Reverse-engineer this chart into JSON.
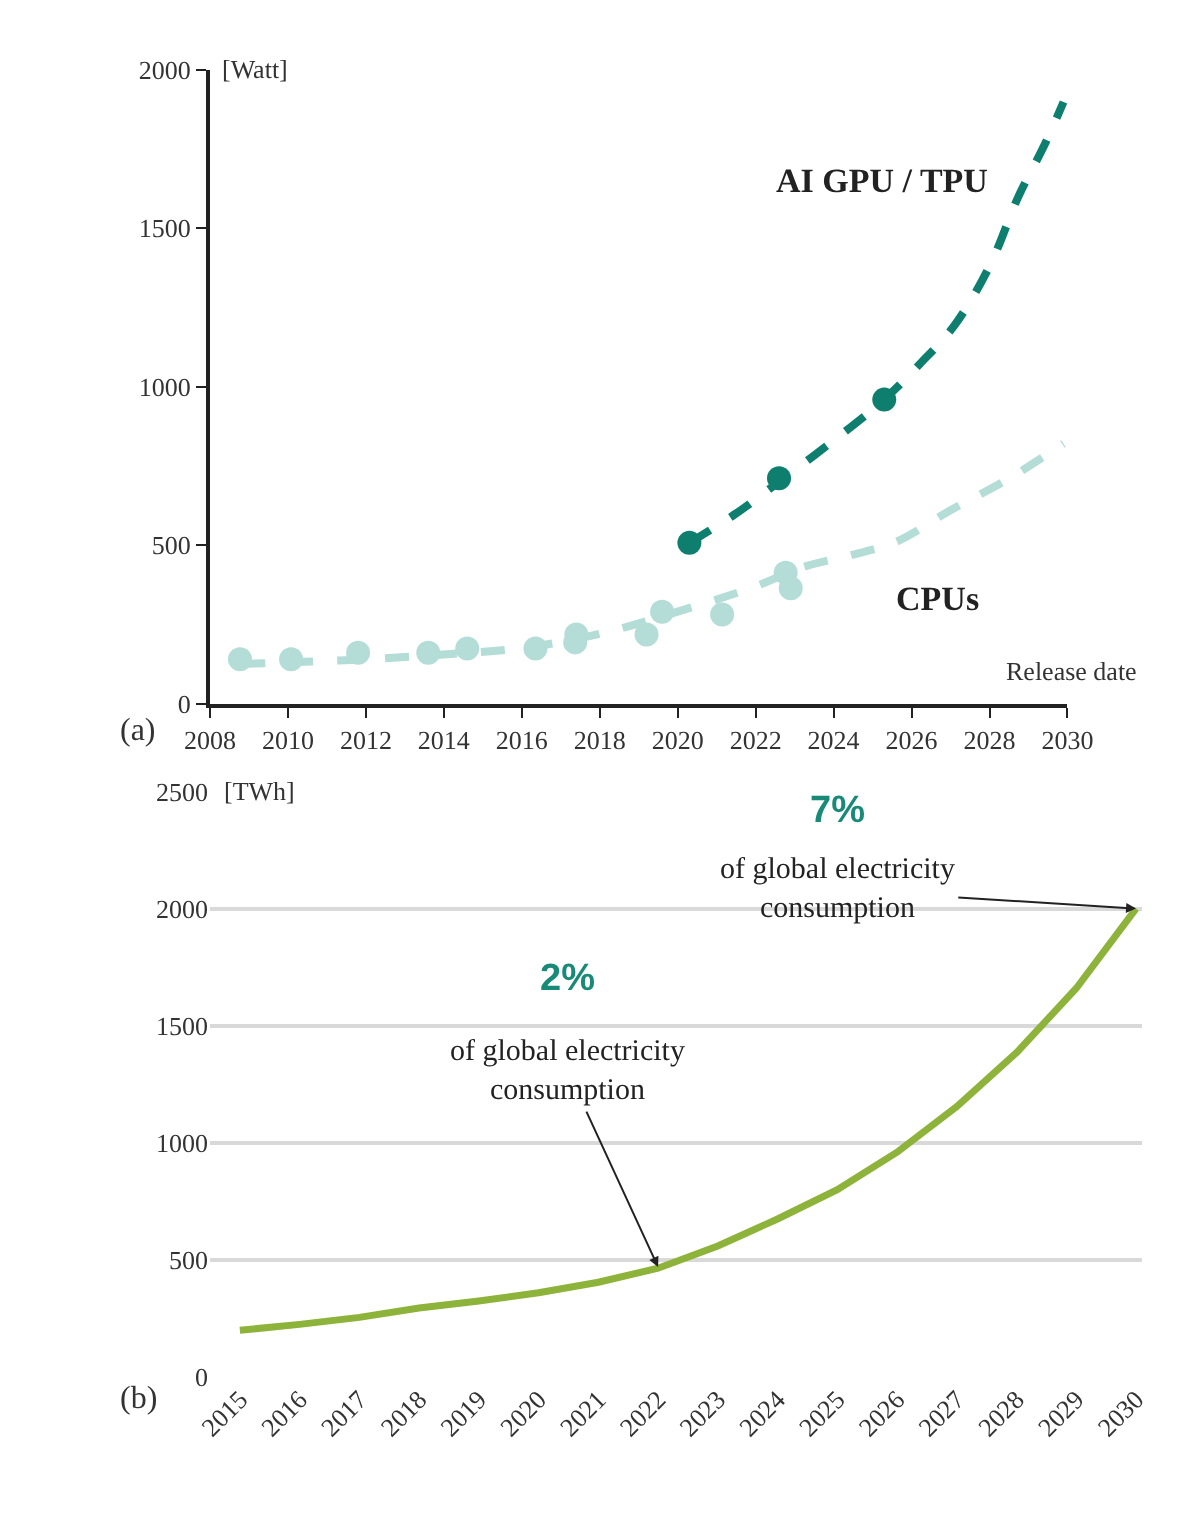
{
  "chart_data": [
    {
      "type": "scatter",
      "ylabel": "[Watt]",
      "xlabel": "Release date",
      "xlim": [
        2008,
        2030
      ],
      "xticks": [
        2008,
        2010,
        2012,
        2014,
        2016,
        2018,
        2020,
        2022,
        2024,
        2026,
        2028,
        2030
      ],
      "ylim": [
        0,
        2000
      ],
      "yticks": [
        0,
        500,
        1000,
        1500,
        2000
      ],
      "grid": false,
      "legend": false,
      "marker": "circle",
      "annotations": [
        "(a)"
      ],
      "series": [
        {
          "type": "line",
          "line_style": "dashed",
          "marker": "none",
          "name": "AI GPU / TPU",
          "color": "#0e7f6e",
          "x": [
            2020.3,
            2021.5,
            2022.6,
            2024.0,
            2025.3,
            2026.2,
            2027.1,
            2028.0,
            2028.75,
            2029.4,
            2029.9
          ],
          "values": [
            507,
            600,
            700,
            830,
            960,
            1070,
            1193,
            1380,
            1602,
            1760,
            1898
          ]
        },
        {
          "type": "line",
          "line_style": "dashed",
          "marker": "none",
          "name": "CPUs",
          "color": "#b3ddd6",
          "x": [
            2008.8,
            2010,
            2012,
            2014,
            2016,
            2018,
            2020,
            2022,
            2023.2,
            2024.5,
            2025.6,
            2027,
            2028.5,
            2029.9
          ],
          "values": [
            125,
            130,
            140,
            155,
            175,
            220,
            290,
            370,
            430,
            470,
            510,
            610,
            710,
            820
          ]
        },
        {
          "color": "#0e7f6e",
          "x": [
            2020.3,
            2022.6,
            2025.3
          ],
          "values": [
            507,
            711,
            959
          ]
        },
        {
          "color": "#b3ddd6",
          "x": [
            2008.77,
            2010.08,
            2011.8,
            2013.6,
            2014.6,
            2016.35,
            2017.4,
            2017.37,
            2019.2,
            2019.6,
            2021.14,
            2022.77,
            2022.9
          ],
          "values": [
            140,
            140,
            160,
            160,
            174,
            174,
            218,
            193,
            218,
            290,
            281,
            413,
            364
          ]
        }
      ]
    },
    {
      "type": "line",
      "ylabel": "[TWh]",
      "categories": [
        "2015",
        "2016",
        "2017",
        "2018",
        "2019",
        "2020",
        "2021",
        "2022",
        "2023",
        "2024",
        "2025",
        "2026",
        "2027",
        "2028",
        "2029",
        "2030"
      ],
      "values": [
        200,
        225,
        255,
        295,
        325,
        360,
        405,
        465,
        560,
        675,
        800,
        960,
        1155,
        1385,
        1660,
        2000
      ],
      "color": "#8db33a",
      "ylim": [
        0,
        2500
      ],
      "yticks": [
        0,
        500,
        1000,
        1500,
        2000,
        2500
      ],
      "grid": "y",
      "legend": false,
      "annotations": [
        "(b)",
        "7%",
        "2%",
        {
          "text": "of global electricity\nconsumption",
          "x": "2030",
          "y": 2000
        },
        {
          "text": "of global electricity\nconsumption",
          "x": "2022",
          "y": 470
        }
      ]
    }
  ]
}
